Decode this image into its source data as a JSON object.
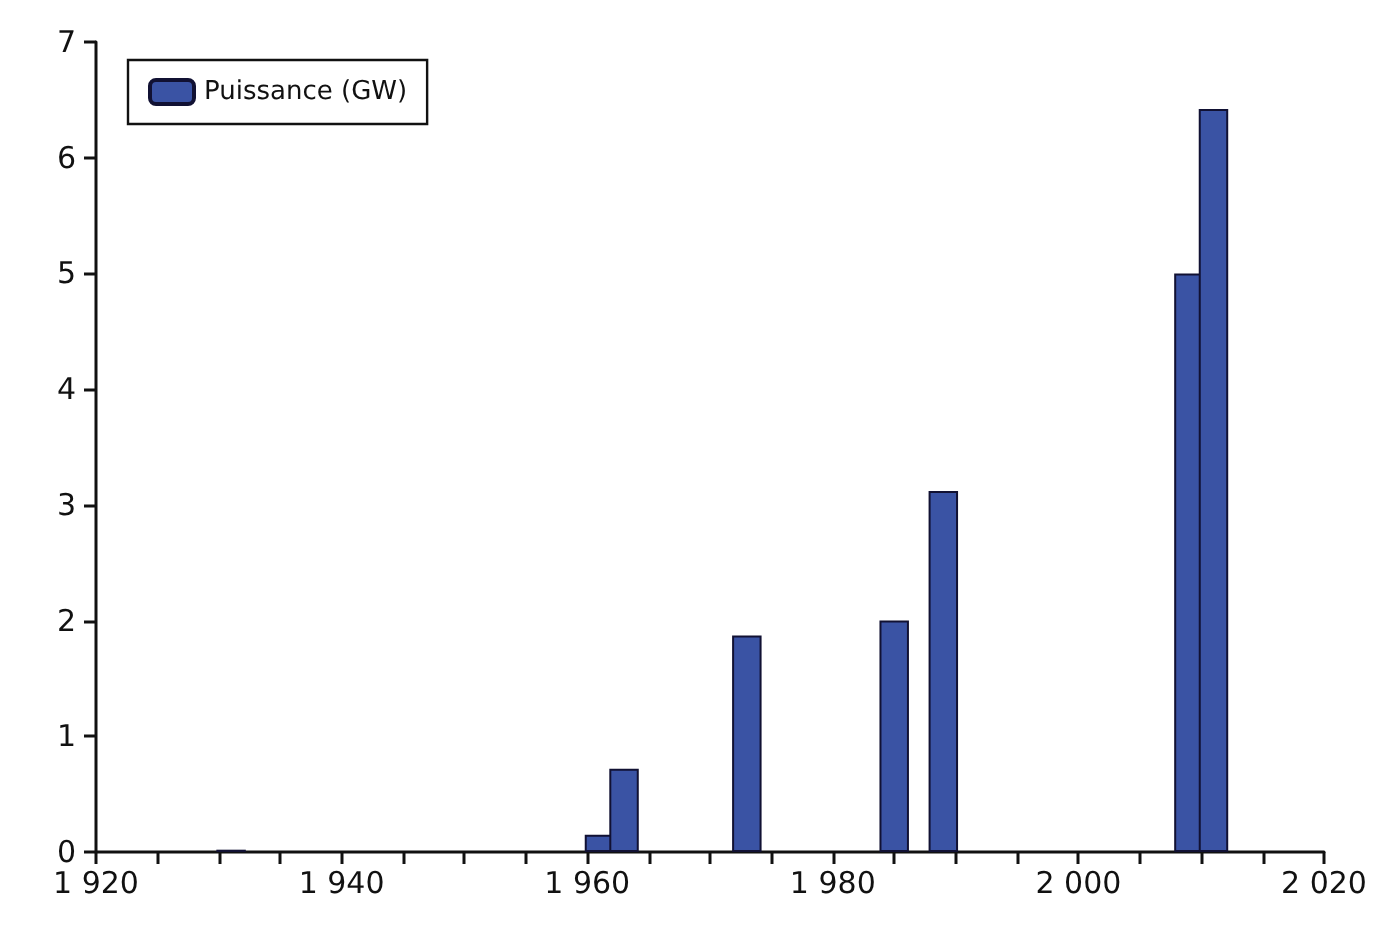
{
  "chart_data": {
    "type": "bar",
    "x": [
      1931,
      1961,
      1963,
      1973,
      1985,
      1989,
      2009,
      2011
    ],
    "series": [
      {
        "name": "Puissance (GW)",
        "color": "#3a53a4",
        "values": [
          0.02,
          0.15,
          0.72,
          1.87,
          2.0,
          3.12,
          5.0,
          6.42
        ]
      }
    ],
    "xlim": [
      1920,
      2020
    ],
    "xticks": [
      {
        "value": 1920,
        "label": "1 920"
      },
      {
        "value": 1925,
        "label": null
      },
      {
        "value": 1930,
        "label": null
      },
      {
        "value": 1935,
        "label": null
      },
      {
        "value": 1940,
        "label": "1 940"
      },
      {
        "value": 1945,
        "label": null
      },
      {
        "value": 1950,
        "label": null
      },
      {
        "value": 1955,
        "label": null
      },
      {
        "value": 1960,
        "label": "1 960"
      },
      {
        "value": 1965,
        "label": null
      },
      {
        "value": 1970,
        "label": null
      },
      {
        "value": 1975,
        "label": null
      },
      {
        "value": 1980,
        "label": "1 980"
      },
      {
        "value": 1985,
        "label": null
      },
      {
        "value": 1990,
        "label": null
      },
      {
        "value": 1995,
        "label": null
      },
      {
        "value": 2000,
        "label": "2 000"
      },
      {
        "value": 2005,
        "label": null
      },
      {
        "value": 2010,
        "label": null
      },
      {
        "value": 2015,
        "label": null
      },
      {
        "value": 2020,
        "label": "2 020"
      }
    ],
    "ylim": [
      0,
      7
    ],
    "yticks": [
      0,
      1,
      2,
      3,
      4,
      5,
      6,
      7
    ],
    "grid": false,
    "legend": "top left"
  }
}
